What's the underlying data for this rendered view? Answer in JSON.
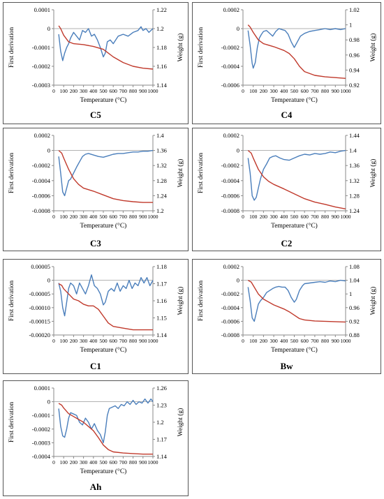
{
  "colors": {
    "derivative": "#4a7ebb",
    "weight": "#c0392b",
    "axis": "#888888",
    "zero": "#999999"
  },
  "chart_data": [
    {
      "id": "C5",
      "type": "line",
      "caption": "C5",
      "xlabel": "Temperature (°C)",
      "ylabel_left": "First derivation",
      "ylabel_right": "Weight (g)",
      "xlim": [
        0,
        1000
      ],
      "xticks": [
        "0",
        "100",
        "200",
        "300",
        "400",
        "500",
        "600",
        "700",
        "800",
        "900",
        "1000"
      ],
      "ylim_left": [
        -0.0003,
        0.0001
      ],
      "yticks_left": [
        "0.0001",
        "0",
        "-0.0001",
        "-0.0002",
        "-0.0003"
      ],
      "ylim_right": [
        1.14,
        1.22
      ],
      "yticks_right": [
        "1.22",
        "1.2",
        "1.18",
        "1.16",
        "1.14"
      ],
      "series": [
        {
          "axis": "left",
          "role": "derivative",
          "x": [
            50,
            70,
            90,
            110,
            130,
            150,
            170,
            200,
            230,
            260,
            290,
            320,
            350,
            380,
            410,
            440,
            470,
            500,
            520,
            540,
            570,
            600,
            650,
            700,
            750,
            800,
            850,
            880,
            900,
            930,
            960,
            1000
          ],
          "y": [
            -3e-05,
            -0.00012,
            -0.00017,
            -0.00013,
            -0.0001,
            -8e-05,
            -5e-05,
            -2e-05,
            -4e-05,
            -6e-05,
            -1e-05,
            -2e-05,
            0.0,
            -4e-05,
            -3e-05,
            -6e-05,
            -0.0001,
            -0.00015,
            -0.00013,
            -7e-05,
            -6e-05,
            -8e-05,
            -4e-05,
            -3e-05,
            -4e-05,
            -2e-05,
            -1e-05,
            1e-05,
            -1e-05,
            0.0,
            -2e-05,
            0.0
          ]
        },
        {
          "axis": "right",
          "role": "weight",
          "x": [
            50,
            70,
            100,
            150,
            200,
            300,
            400,
            500,
            550,
            600,
            700,
            800,
            900,
            1000
          ],
          "y": [
            1.203,
            1.2,
            1.193,
            1.186,
            1.184,
            1.183,
            1.181,
            1.178,
            1.174,
            1.17,
            1.164,
            1.16,
            1.158,
            1.157
          ]
        }
      ]
    },
    {
      "id": "C4",
      "type": "line",
      "caption": "C4",
      "xlabel": "Temperature (°C)",
      "ylabel_left": "First derivation",
      "ylabel_right": "Weight (g)",
      "xlim": [
        0,
        1000
      ],
      "xticks": [
        "0",
        "100",
        "200",
        "300",
        "400",
        "500",
        "600",
        "700",
        "800",
        "900",
        "1000"
      ],
      "ylim_left": [
        -0.0006,
        0.0002
      ],
      "yticks_left": [
        "0.0002",
        "0",
        "-0.0002",
        "-0.0004",
        "-0.0006"
      ],
      "ylim_right": [
        0.92,
        1.02
      ],
      "yticks_right": [
        "1.02",
        "1",
        "0.98",
        "0.96",
        "0.94",
        "0.92"
      ],
      "series": [
        {
          "axis": "left",
          "role": "derivative",
          "x": [
            50,
            70,
            90,
            100,
            120,
            140,
            160,
            180,
            200,
            230,
            260,
            290,
            320,
            350,
            380,
            410,
            440,
            470,
            500,
            530,
            560,
            600,
            650,
            700,
            750,
            800,
            850,
            900,
            950,
            1000
          ],
          "y": [
            -2e-05,
            -0.00018,
            -0.00037,
            -0.00042,
            -0.00036,
            -0.0002,
            -0.0001,
            -6e-05,
            -3e-05,
            -2e-05,
            -5e-05,
            -8e-05,
            -3e-05,
            0.0,
            -1e-05,
            -2e-05,
            -6e-05,
            -0.00014,
            -0.0002,
            -0.00014,
            -8e-05,
            -5e-05,
            -3e-05,
            -2e-05,
            -1e-05,
            0.0,
            -1e-05,
            0.0,
            -1e-05,
            0.0
          ]
        },
        {
          "axis": "right",
          "role": "weight",
          "x": [
            50,
            70,
            100,
            150,
            200,
            300,
            400,
            450,
            500,
            550,
            600,
            700,
            800,
            900,
            1000
          ],
          "y": [
            1.0,
            0.997,
            0.99,
            0.98,
            0.975,
            0.971,
            0.966,
            0.962,
            0.955,
            0.945,
            0.938,
            0.933,
            0.931,
            0.93,
            0.929
          ]
        }
      ]
    },
    {
      "id": "C3",
      "type": "line",
      "caption": "C3",
      "xlabel": "Temperature (°C)",
      "ylabel_left": "First derivation",
      "ylabel_right": "Weight (g)",
      "xlim": [
        0,
        1000
      ],
      "xticks": [
        "0",
        "100",
        "200",
        "300",
        "400",
        "500",
        "600",
        "700",
        "800",
        "900",
        "1000"
      ],
      "ylim_left": [
        -0.0008,
        0.0002
      ],
      "yticks_left": [
        "0.0002",
        "0",
        "-0.0002",
        "-0.0004",
        "-0.0006",
        "-0.0008"
      ],
      "ylim_right": [
        1.2,
        1.4
      ],
      "yticks_right": [
        "1.4",
        "1.36",
        "1.32",
        "1.28",
        "1.24",
        "1.2"
      ],
      "series": [
        {
          "axis": "left",
          "role": "derivative",
          "x": [
            50,
            70,
            90,
            110,
            130,
            150,
            170,
            200,
            230,
            260,
            290,
            320,
            350,
            400,
            450,
            500,
            550,
            600,
            650,
            700,
            750,
            800,
            850,
            900,
            950,
            1000
          ],
          "y": [
            -8e-05,
            -0.0003,
            -0.00055,
            -0.0006,
            -0.0005,
            -0.0004,
            -0.00038,
            -0.0003,
            -0.00022,
            -0.00015,
            -8e-05,
            -5e-05,
            -4e-05,
            -6e-05,
            -8e-05,
            -9e-05,
            -7e-05,
            -5e-05,
            -4e-05,
            -4e-05,
            -3e-05,
            -2e-05,
            -2e-05,
            -1e-05,
            -1e-05,
            0.0
          ]
        },
        {
          "axis": "right",
          "role": "weight",
          "x": [
            50,
            80,
            100,
            150,
            200,
            250,
            300,
            400,
            500,
            600,
            700,
            800,
            900,
            1000
          ],
          "y": [
            1.36,
            1.353,
            1.34,
            1.31,
            1.285,
            1.27,
            1.26,
            1.252,
            1.242,
            1.232,
            1.227,
            1.224,
            1.222,
            1.222
          ]
        }
      ]
    },
    {
      "id": "C2",
      "type": "line",
      "caption": "C2",
      "xlabel": "Temperature (°C)",
      "ylabel_left": "First derivation",
      "ylabel_right": "Weight (g)",
      "xlim": [
        0,
        1000
      ],
      "xticks": [
        "0",
        "100",
        "200",
        "300",
        "400",
        "500",
        "600",
        "700",
        "800",
        "900",
        "1000"
      ],
      "ylim_left": [
        -0.0008,
        0.0002
      ],
      "yticks_left": [
        "0.0002",
        "0",
        "-0.0002",
        "-0.0004",
        "-0.0006",
        "-0.0008"
      ],
      "ylim_right": [
        1.24,
        1.44
      ],
      "yticks_right": [
        "1.44",
        "1.4",
        "1.36",
        "1.32",
        "1.28",
        "1.24"
      ],
      "series": [
        {
          "axis": "left",
          "role": "derivative",
          "x": [
            50,
            70,
            90,
            110,
            130,
            150,
            170,
            200,
            230,
            260,
            290,
            320,
            360,
            400,
            450,
            500,
            550,
            600,
            650,
            700,
            750,
            800,
            850,
            900,
            950,
            1000
          ],
          "y": [
            -0.0001,
            -0.0003,
            -0.0006,
            -0.00066,
            -0.00062,
            -0.0005,
            -0.00038,
            -0.00025,
            -0.00018,
            -0.0001,
            -8e-05,
            -7e-05,
            -0.0001,
            -0.00012,
            -0.00013,
            -0.0001,
            -7e-05,
            -5e-05,
            -6e-05,
            -4e-05,
            -5e-05,
            -4e-05,
            -2e-05,
            -3e-05,
            -1e-05,
            0.0
          ]
        },
        {
          "axis": "right",
          "role": "weight",
          "x": [
            50,
            80,
            100,
            150,
            200,
            250,
            300,
            400,
            500,
            600,
            700,
            800,
            900,
            1000
          ],
          "y": [
            1.4,
            1.393,
            1.38,
            1.35,
            1.33,
            1.318,
            1.31,
            1.298,
            1.285,
            1.272,
            1.263,
            1.257,
            1.25,
            1.245
          ]
        }
      ]
    },
    {
      "id": "C1",
      "type": "line",
      "caption": "C1",
      "xlabel": "Temperature (°C)",
      "ylabel_left": "First derivation",
      "ylabel_right": "Weight (g)",
      "xlim": [
        0,
        1000
      ],
      "xticks": [
        "0",
        "100",
        "200",
        "300",
        "400",
        "500",
        "600",
        "700",
        "800",
        "900",
        "1000"
      ],
      "ylim_left": [
        -0.0002,
        5e-05
      ],
      "yticks_left": [
        "0.00005",
        "0",
        "-0.00005",
        "-0.00010",
        "-0.00015",
        "-0.00020"
      ],
      "ylim_right": [
        1.14,
        1.18
      ],
      "yticks_right": [
        "1.18",
        "1.17",
        "1.16",
        "1.15",
        "1.14"
      ],
      "series": [
        {
          "axis": "left",
          "role": "derivative",
          "x": [
            50,
            70,
            90,
            110,
            130,
            150,
            170,
            200,
            230,
            260,
            290,
            320,
            350,
            380,
            410,
            440,
            470,
            500,
            520,
            550,
            580,
            610,
            640,
            670,
            700,
            730,
            760,
            790,
            820,
            850,
            880,
            910,
            940,
            970,
            1000
          ],
          "y": [
            -1e-05,
            -4e-05,
            -0.0001,
            -0.00013,
            -8e-05,
            -3e-05,
            -1e-05,
            -2e-05,
            -5e-05,
            -1e-05,
            -3e-05,
            -5e-05,
            -2e-05,
            2e-05,
            -2e-05,
            -3e-05,
            -5e-05,
            -9e-05,
            -8e-05,
            -4e-05,
            -3e-05,
            -4e-05,
            -1e-05,
            -4e-05,
            -2e-05,
            -3e-05,
            0.0,
            -3e-05,
            -1e-05,
            -2e-05,
            1e-05,
            -1e-05,
            1e-05,
            -2e-05,
            0.0
          ]
        },
        {
          "axis": "right",
          "role": "weight",
          "x": [
            50,
            80,
            100,
            150,
            200,
            250,
            300,
            350,
            400,
            450,
            500,
            550,
            600,
            700,
            800,
            900,
            1000
          ],
          "y": [
            1.17,
            1.169,
            1.167,
            1.164,
            1.161,
            1.16,
            1.158,
            1.157,
            1.157,
            1.155,
            1.151,
            1.147,
            1.145,
            1.144,
            1.143,
            1.143,
            1.143
          ]
        }
      ]
    },
    {
      "id": "Bw",
      "type": "line",
      "caption": "Bw",
      "xlabel": "Temperature (°C)",
      "ylabel_left": "First derivation",
      "ylabel_right": "Weight (g)",
      "xlim": [
        0,
        1000
      ],
      "xticks": [
        "0",
        "100",
        "200",
        "300",
        "400",
        "500",
        "600",
        "700",
        "800",
        "900",
        "1000"
      ],
      "ylim_left": [
        -0.0008,
        0.0002
      ],
      "yticks_left": [
        "0.0002",
        "0",
        "-0.0002",
        "-0.0004",
        "-0.0006",
        "-0.0008"
      ],
      "ylim_right": [
        0.88,
        1.08
      ],
      "yticks_right": [
        "1.08",
        "1.04",
        "1",
        "0.96",
        "0.92",
        "0.88"
      ],
      "series": [
        {
          "axis": "left",
          "role": "derivative",
          "x": [
            50,
            70,
            90,
            110,
            130,
            150,
            170,
            200,
            230,
            260,
            290,
            320,
            350,
            380,
            410,
            440,
            470,
            500,
            520,
            550,
            580,
            600,
            650,
            700,
            750,
            800,
            850,
            900,
            950,
            1000
          ],
          "y": [
            -0.0001,
            -0.0003,
            -0.00055,
            -0.0006,
            -0.00048,
            -0.00035,
            -0.0003,
            -0.00025,
            -0.00018,
            -0.00015,
            -0.00012,
            -0.0001,
            -9e-05,
            -0.0001,
            -0.0001,
            -0.00015,
            -0.00025,
            -0.00032,
            -0.00028,
            -0.00015,
            -8e-05,
            -5e-05,
            -4e-05,
            -3e-05,
            -2e-05,
            -3e-05,
            -1e-05,
            -2e-05,
            0.0,
            -1e-05
          ]
        },
        {
          "axis": "right",
          "role": "weight",
          "x": [
            50,
            80,
            100,
            150,
            200,
            300,
            400,
            450,
            500,
            550,
            600,
            700,
            800,
            900,
            1000
          ],
          "y": [
            1.04,
            1.035,
            1.025,
            1.0,
            0.985,
            0.968,
            0.956,
            0.948,
            0.938,
            0.928,
            0.924,
            0.921,
            0.92,
            0.919,
            0.918
          ]
        }
      ]
    },
    {
      "id": "Ah",
      "type": "line",
      "caption": "Ah",
      "xlabel": "Temperature (°C)",
      "ylabel_left": "First derivation",
      "ylabel_right": "Weight (g)",
      "xlim": [
        0,
        1000
      ],
      "xticks": [
        "0",
        "100",
        "200",
        "300",
        "400",
        "500",
        "600",
        "700",
        "800",
        "900",
        "1000"
      ],
      "ylim_left": [
        -0.0004,
        0.0001
      ],
      "yticks_left": [
        "0.0001",
        "0",
        "-0.0001",
        "-0.0002",
        "-0.0003",
        "-0.0004"
      ],
      "ylim_right": [
        1.14,
        1.26
      ],
      "yticks_right": [
        "1.26",
        "1.23",
        "1.2",
        "1.17",
        "1.14"
      ],
      "series": [
        {
          "axis": "left",
          "role": "derivative",
          "x": [
            50,
            70,
            90,
            110,
            130,
            150,
            170,
            200,
            230,
            260,
            290,
            320,
            350,
            380,
            410,
            440,
            470,
            500,
            520,
            540,
            560,
            590,
            620,
            650,
            680,
            710,
            740,
            770,
            800,
            830,
            860,
            890,
            920,
            950,
            980,
            1000
          ],
          "y": [
            -5e-05,
            -0.00018,
            -0.00025,
            -0.00026,
            -0.0002,
            -0.00012,
            -8e-05,
            -9e-05,
            -0.0001,
            -0.00015,
            -0.00017,
            -0.00012,
            -0.00015,
            -0.0002,
            -0.00016,
            -0.00021,
            -0.00024,
            -0.0003,
            -0.00022,
            -0.0001,
            -5e-05,
            -4e-05,
            -3e-05,
            -5e-05,
            -2e-05,
            -3e-05,
            0.0,
            -2e-05,
            1e-05,
            -2e-05,
            0.0,
            -1e-05,
            2e-05,
            -1e-05,
            2e-05,
            0.0
          ]
        },
        {
          "axis": "right",
          "role": "weight",
          "x": [
            50,
            80,
            100,
            150,
            200,
            300,
            400,
            450,
            500,
            550,
            600,
            700,
            800,
            900,
            1000
          ],
          "y": [
            1.233,
            1.23,
            1.225,
            1.215,
            1.21,
            1.2,
            1.185,
            1.173,
            1.16,
            1.152,
            1.148,
            1.146,
            1.145,
            1.144,
            1.144
          ]
        }
      ]
    }
  ]
}
